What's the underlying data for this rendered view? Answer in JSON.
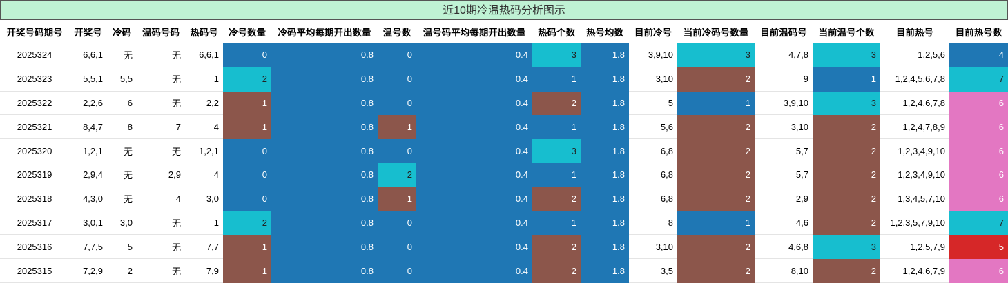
{
  "table": {
    "title": "近10期冷温热码分析图示",
    "columns": [
      "开奖号码期号",
      "开奖号",
      "冷码",
      "温码号码",
      "热码号",
      "冷号数量",
      "冷码平均每期开出数量",
      "温号数",
      "温号码平均每期开出数量",
      "热码个数",
      "热号均数",
      "目前冷号",
      "当前冷码号数量",
      "目前温码号",
      "当前温号个数",
      "目前热号",
      "目前热号数"
    ],
    "rows": [
      [
        "2025324",
        "6,6,1",
        "无",
        "无",
        "6,6,1",
        0,
        0.8,
        0,
        0.4,
        3,
        1.8,
        "3,9,10",
        3,
        "4,7,8",
        3,
        "1,2,5,6",
        4
      ],
      [
        "2025323",
        "5,5,1",
        "5,5",
        "无",
        "1",
        2,
        0.8,
        0,
        0.4,
        1,
        1.8,
        "3,10",
        2,
        "9",
        1,
        "1,2,4,5,6,7,8",
        7
      ],
      [
        "2025322",
        "2,2,6",
        "6",
        "无",
        "2,2",
        1,
        0.8,
        0,
        0.4,
        2,
        1.8,
        "5",
        1,
        "3,9,10",
        3,
        "1,2,4,6,7,8",
        6
      ],
      [
        "2025321",
        "8,4,7",
        "8",
        "7",
        "4",
        1,
        0.8,
        1,
        0.4,
        1,
        1.8,
        "5,6",
        2,
        "3,10",
        2,
        "1,2,4,7,8,9",
        6
      ],
      [
        "2025320",
        "1,2,1",
        "无",
        "无",
        "1,2,1",
        0,
        0.8,
        0,
        0.4,
        3,
        1.8,
        "6,8",
        2,
        "5,7",
        2,
        "1,2,3,4,9,10",
        6
      ],
      [
        "2025319",
        "2,9,4",
        "无",
        "2,9",
        "4",
        0,
        0.8,
        2,
        0.4,
        1,
        1.8,
        "6,8",
        2,
        "5,7",
        2,
        "1,2,3,4,9,10",
        6
      ],
      [
        "2025318",
        "4,3,0",
        "无",
        "4",
        "3,0",
        0,
        0.8,
        1,
        0.4,
        2,
        1.8,
        "6,8",
        2,
        "2,9",
        2,
        "1,3,4,5,7,10",
        6
      ],
      [
        "2025317",
        "3,0,1",
        "3,0",
        "无",
        "1",
        2,
        0.8,
        0,
        0.4,
        1,
        1.8,
        "8",
        1,
        "4,6",
        2,
        "1,2,3,5,7,9,10",
        7
      ],
      [
        "2025316",
        "7,7,5",
        "5",
        "无",
        "7,7",
        1,
        0.8,
        0,
        0.4,
        2,
        1.8,
        "3,10",
        2,
        "4,6,8",
        3,
        "1,2,5,7,9",
        5
      ],
      [
        "2025315",
        "7,2,9",
        "2",
        "无",
        "7,9",
        1,
        0.8,
        0,
        0.4,
        2,
        1.8,
        "3,5",
        2,
        "8,10",
        2,
        "1,2,4,6,7,9",
        6
      ]
    ]
  }
}
